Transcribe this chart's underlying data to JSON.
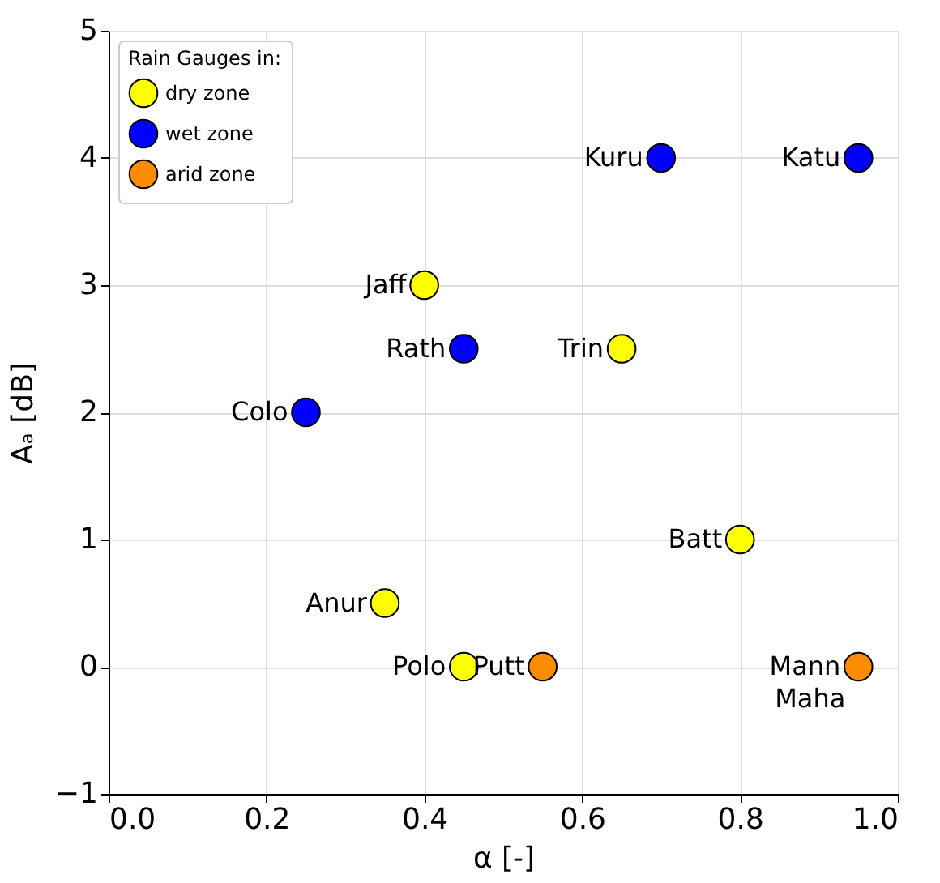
{
  "chart_data": {
    "type": "scatter",
    "xlabel": "α [-]",
    "ylabel": "Aₐ [dB]",
    "legend_title": "Rain Gauges in:",
    "legend": "top left",
    "grid": true,
    "marker": "circle",
    "xlim": [
      0,
      1
    ],
    "xticks": [
      {
        "value": 0,
        "label": "0.0"
      },
      0.2,
      0.4,
      0.6,
      0.8,
      {
        "value": 1,
        "label": "1.0"
      }
    ],
    "ylim": [
      -1,
      5
    ],
    "yticks": [
      {
        "value": -1,
        "label": "−1"
      },
      {
        "value": 0,
        "label": "0"
      },
      {
        "value": 1,
        "label": "1"
      },
      {
        "value": 2,
        "label": "2"
      },
      {
        "value": 3,
        "label": "3"
      },
      {
        "value": 4,
        "label": "4"
      },
      {
        "value": 5,
        "label": "5"
      }
    ],
    "series": [
      {
        "name": "dry zone",
        "color": "#ffff00",
        "x": [
          0.4,
          0.65,
          0.8,
          0.35,
          0.45
        ],
        "values": [
          3,
          2.5,
          1,
          0.5,
          0
        ]
      },
      {
        "name": "wet zone",
        "color": "#0000ff",
        "x": [
          0.7,
          0.95,
          0.45,
          0.25
        ],
        "values": [
          4,
          4,
          2.5,
          2
        ]
      },
      {
        "name": "arid zone",
        "color": "#ff8c00",
        "x": [
          0.55,
          0.95
        ],
        "values": [
          0,
          0
        ]
      }
    ],
    "annotations": [
      {
        "text": "Jaff",
        "x": 0.4,
        "y": 3
      },
      {
        "text": "Trin",
        "x": 0.65,
        "y": 2.5
      },
      {
        "text": "Batt",
        "x": 0.8,
        "y": 1
      },
      {
        "text": "Anur",
        "x": 0.35,
        "y": 0.5
      },
      {
        "text": "Polo",
        "x": 0.45,
        "y": 0
      },
      {
        "text": "Kuru",
        "x": 0.7,
        "y": 4
      },
      {
        "text": "Katu",
        "x": 0.95,
        "y": 4
      },
      {
        "text": "Rath",
        "x": 0.45,
        "y": 2.5
      },
      {
        "text": "Colo",
        "x": 0.25,
        "y": 2
      },
      {
        "text": "Putt",
        "x": 0.55,
        "y": 0
      },
      {
        "text": "Mann",
        "x": 0.95,
        "y": 0
      },
      {
        "text": "Maha",
        "x": 0.95,
        "y": 0
      }
    ]
  }
}
